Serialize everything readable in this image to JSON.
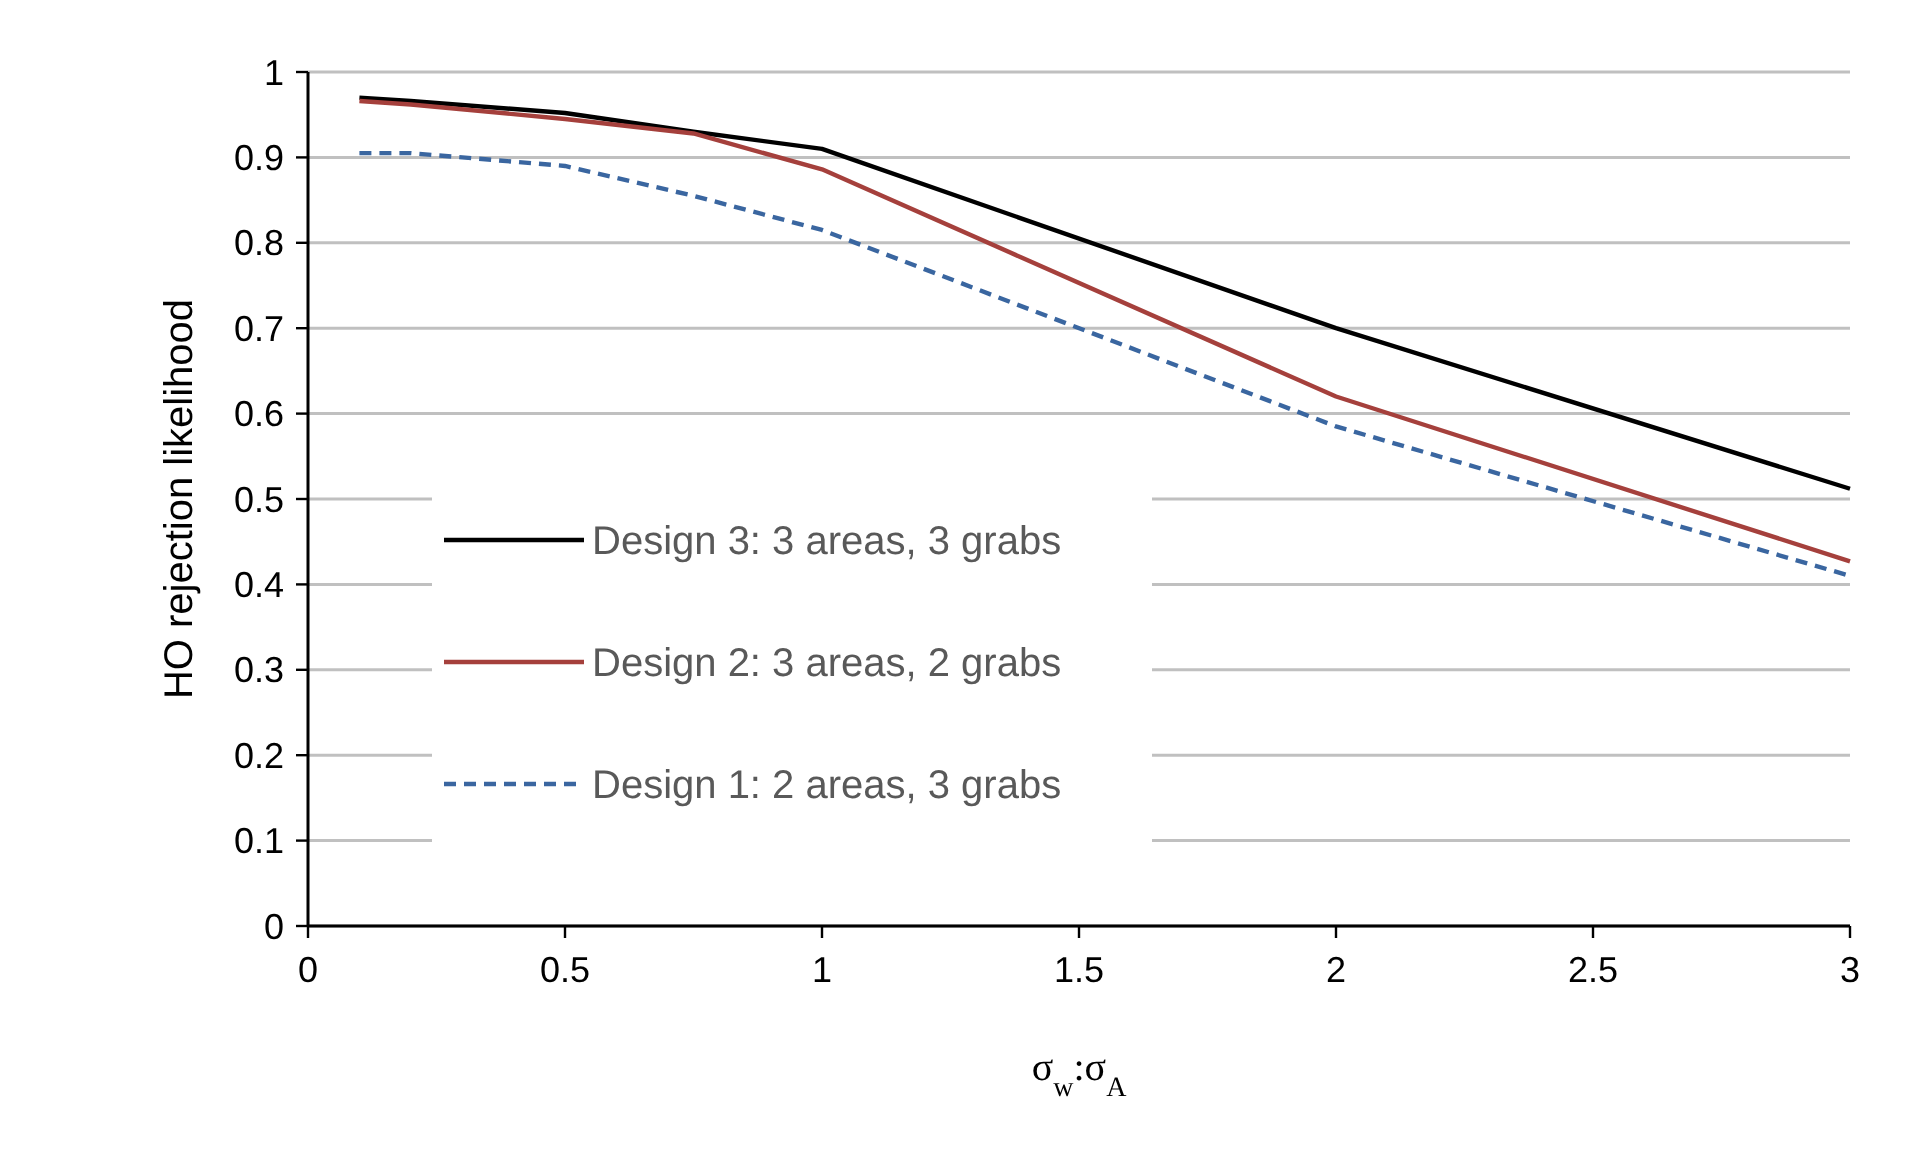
{
  "chart_data": {
    "type": "line",
    "xlabel": "σ$_{w}$:σ$_{A}$",
    "ylabel": "HO rejection likelihood",
    "x": [
      0.1,
      0.2,
      0.5,
      0.75,
      1,
      2,
      3
    ],
    "series": [
      {
        "name": "Design 3: 3 areas, 3 grabs",
        "color": "#000000",
        "line_style": "solid",
        "values": [
          0.97,
          0.966,
          0.952,
          0.93,
          0.91,
          0.7,
          0.512
        ]
      },
      {
        "name": "Design 2: 3 areas, 2 grabs",
        "color": "#a5403c",
        "line_style": "solid",
        "values": [
          0.966,
          0.962,
          0.945,
          0.928,
          0.886,
          0.62,
          0.427
        ]
      },
      {
        "name": "Design 1: 2 areas, 3 grabs",
        "color": "#3a66a0",
        "line_style": "dashed",
        "values": [
          0.905,
          0.905,
          0.89,
          0.855,
          0.815,
          0.585,
          0.41
        ]
      }
    ],
    "xlim": [
      0,
      3
    ],
    "xticks": [
      0,
      0.5,
      1,
      1.5,
      2,
      2.5,
      3
    ],
    "ylim": [
      0,
      1
    ],
    "yticks": [
      0,
      0.1,
      0.2,
      0.3,
      0.4,
      0.5,
      0.6,
      0.7,
      0.8,
      0.9,
      1
    ],
    "grid": "y",
    "legend": "left",
    "marker": "none"
  }
}
